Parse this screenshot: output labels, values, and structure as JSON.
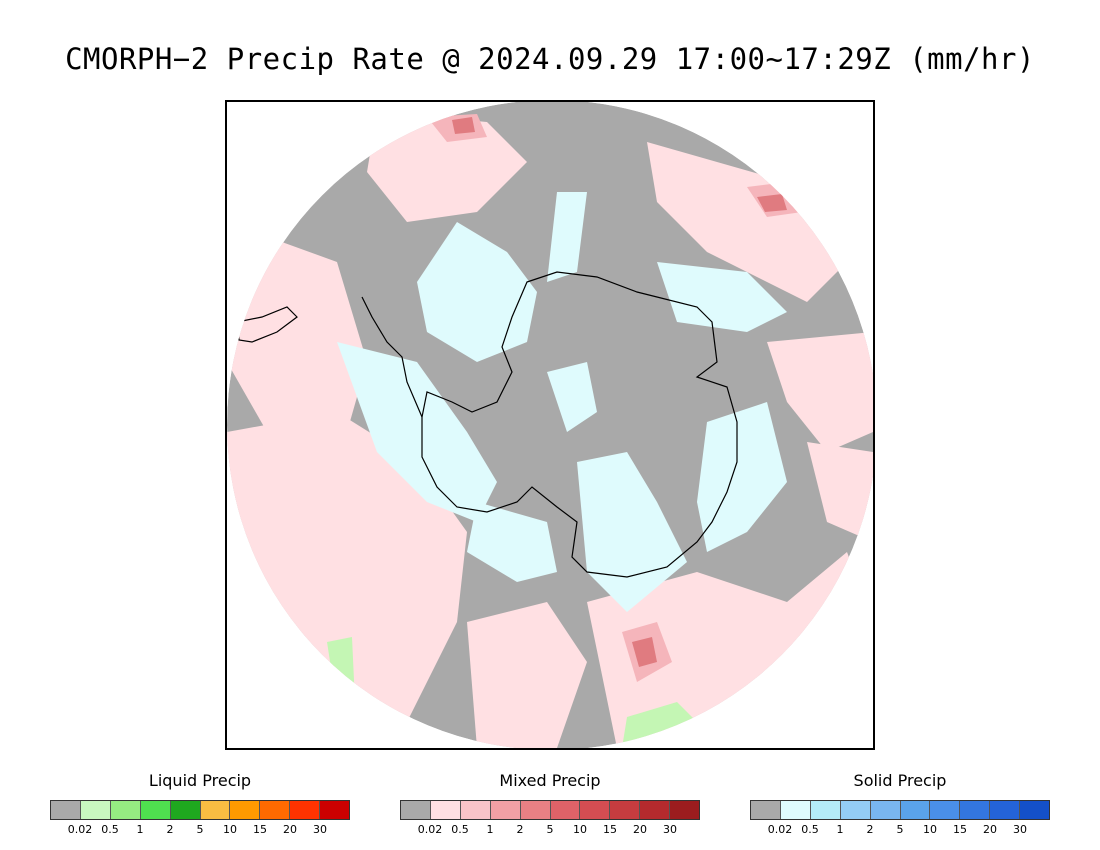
{
  "title": "CMORPH−2 Precip Rate @ 2024.09.29 17:00~17:29Z (mm/hr)",
  "map": {
    "projection": "south-polar-stereographic",
    "colors": {
      "no_precip": "#a9a9a9",
      "mixed_light": "#ffe0e3",
      "mixed_mid": "#f5b5bb",
      "mixed_heavy": "#e07b80",
      "solid_light": "#dffbfd",
      "liquid_light": "#c4f6b4",
      "coastline": "#000000",
      "outside": "#ffffff"
    }
  },
  "legends": [
    {
      "id": "liquid",
      "title": "Liquid Precip",
      "colors": [
        "#a9a9a9",
        "#c8f7c0",
        "#96ec82",
        "#4fe04f",
        "#1fa81f",
        "#f9bd42",
        "#ff9a00",
        "#ff6a00",
        "#ff3300",
        "#cc0000"
      ],
      "ticks": [
        "0.02",
        "0.5",
        "1",
        "2",
        "5",
        "10",
        "15",
        "20",
        "30"
      ]
    },
    {
      "id": "mixed",
      "title": "Mixed Precip",
      "colors": [
        "#a9a9a9",
        "#ffe0e3",
        "#f9c4c8",
        "#f2a0a5",
        "#e88084",
        "#de6268",
        "#d44d52",
        "#c63c3f",
        "#b42a2d",
        "#9c1c1e"
      ],
      "ticks": [
        "0.02",
        "0.5",
        "1",
        "2",
        "5",
        "10",
        "15",
        "20",
        "30"
      ]
    },
    {
      "id": "solid",
      "title": "Solid Precip",
      "colors": [
        "#a9a9a9",
        "#dffbfd",
        "#b4ecf8",
        "#94cdf5",
        "#79b6f0",
        "#5aa3ea",
        "#4a8fe8",
        "#3376e0",
        "#2463d8",
        "#1450c8"
      ],
      "ticks": [
        "0.02",
        "0.5",
        "1",
        "2",
        "5",
        "10",
        "15",
        "20",
        "30"
      ]
    }
  ]
}
